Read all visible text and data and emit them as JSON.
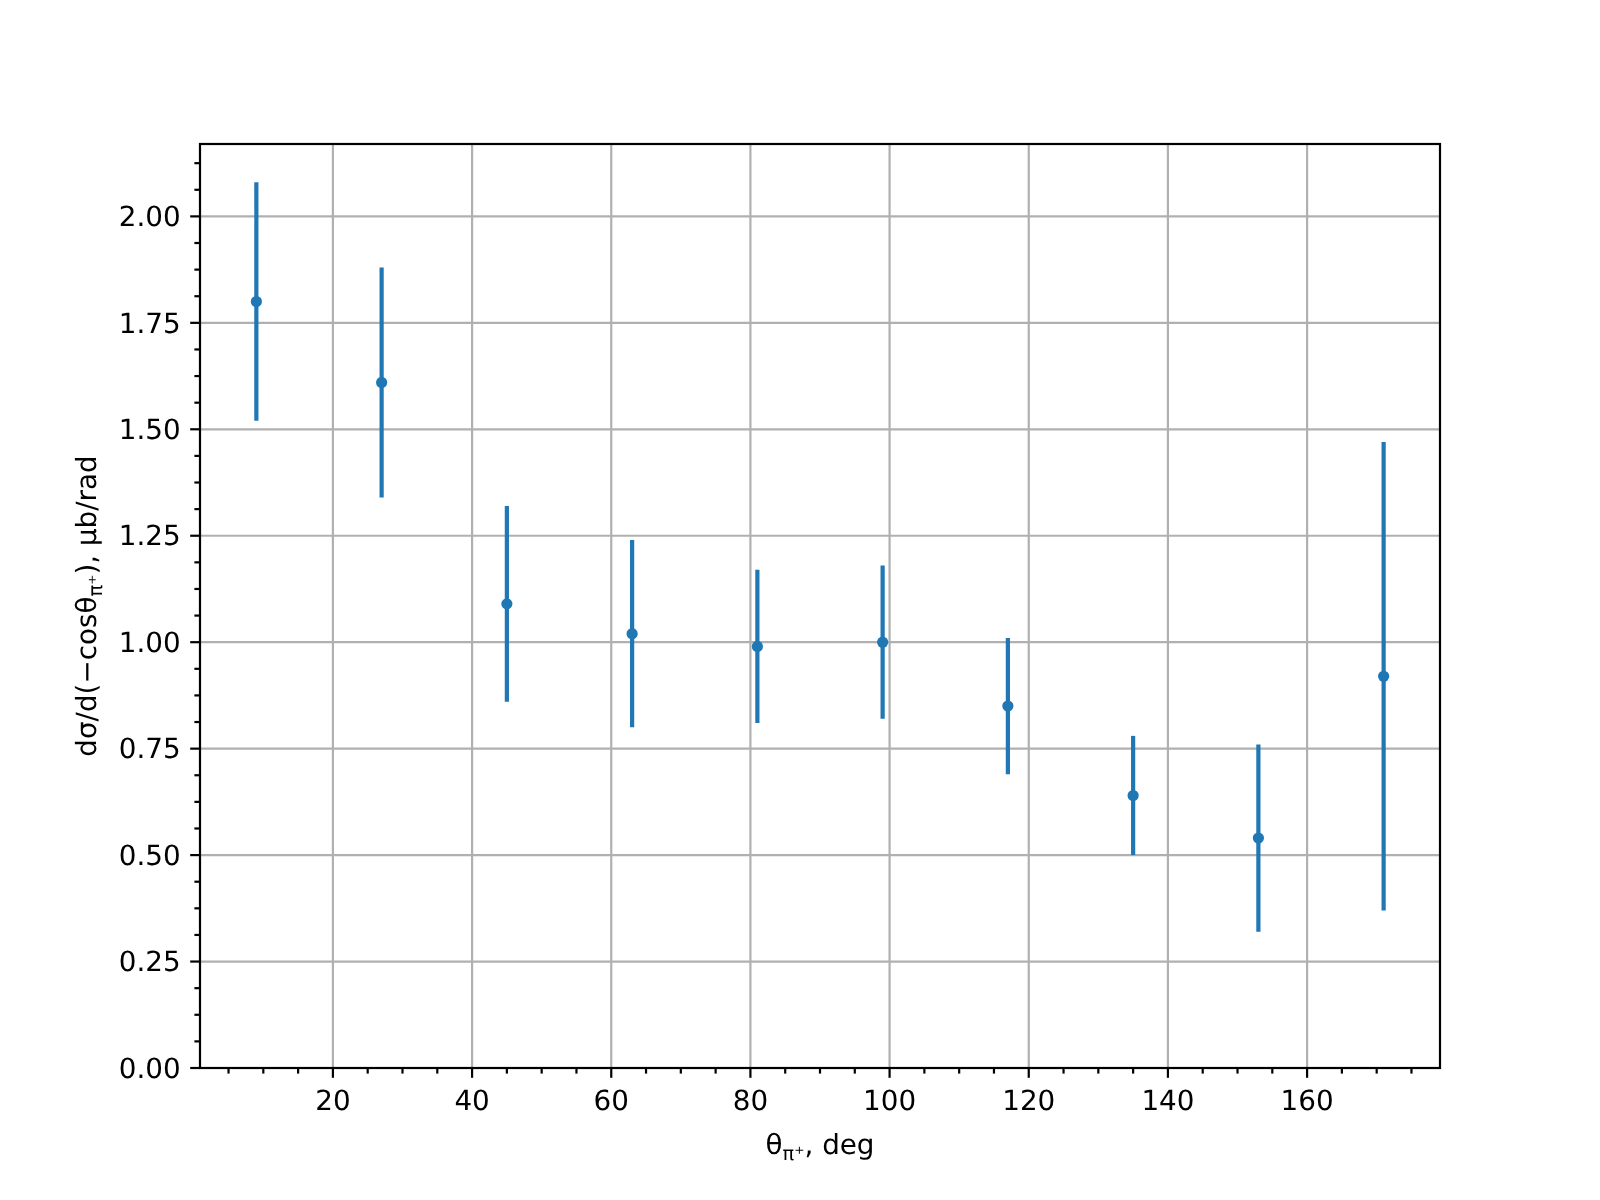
{
  "chart_data": {
    "type": "scatter",
    "xlabel": "θ$_{π⁺}$, deg",
    "ylabel": "dσ/d(−cosθ$_{π⁺}$), μb/rad",
    "x": [
      9,
      27,
      45,
      63,
      81,
      99,
      117,
      135,
      153,
      171
    ],
    "values": [
      1.8,
      1.61,
      1.09,
      1.02,
      0.99,
      1.0,
      0.85,
      0.64,
      0.54,
      0.92
    ],
    "errors": [
      0.28,
      0.27,
      0.23,
      0.22,
      0.18,
      0.18,
      0.16,
      0.14,
      0.22,
      0.55
    ],
    "color": "#1f77b4",
    "marker": "circle",
    "xlim": [
      0.9,
      179.1
    ],
    "ylim": [
      0,
      2.17
    ],
    "xticks": [
      {
        "value": 5,
        "label": null
      },
      {
        "value": 10,
        "label": null
      },
      {
        "value": 15,
        "label": null
      },
      20,
      {
        "value": 25,
        "label": null
      },
      {
        "value": 30,
        "label": null
      },
      {
        "value": 35,
        "label": null
      },
      40,
      {
        "value": 45,
        "label": null
      },
      {
        "value": 50,
        "label": null
      },
      {
        "value": 55,
        "label": null
      },
      60,
      {
        "value": 65,
        "label": null
      },
      {
        "value": 70,
        "label": null
      },
      {
        "value": 75,
        "label": null
      },
      80,
      {
        "value": 85,
        "label": null
      },
      {
        "value": 90,
        "label": null
      },
      {
        "value": 95,
        "label": null
      },
      100,
      {
        "value": 105,
        "label": null
      },
      {
        "value": 110,
        "label": null
      },
      {
        "value": 115,
        "label": null
      },
      120,
      {
        "value": 125,
        "label": null
      },
      {
        "value": 130,
        "label": null
      },
      {
        "value": 135,
        "label": null
      },
      140,
      {
        "value": 145,
        "label": null
      },
      {
        "value": 150,
        "label": null
      },
      {
        "value": 155,
        "label": null
      },
      160,
      {
        "value": 165,
        "label": null
      },
      {
        "value": 170,
        "label": null
      },
      {
        "value": 175,
        "label": null
      }
    ],
    "yticks": [
      {
        "value": 0,
        "label": "0.00"
      },
      {
        "value": 0.0625,
        "label": null
      },
      {
        "value": 0.125,
        "label": null
      },
      {
        "value": 0.1875,
        "label": null
      },
      {
        "value": 0.25,
        "label": "0.25"
      },
      {
        "value": 0.3125,
        "label": null
      },
      {
        "value": 0.375,
        "label": null
      },
      {
        "value": 0.4375,
        "label": null
      },
      {
        "value": 0.5,
        "label": "0.50"
      },
      {
        "value": 0.5625,
        "label": null
      },
      {
        "value": 0.625,
        "label": null
      },
      {
        "value": 0.6875,
        "label": null
      },
      {
        "value": 0.75,
        "label": "0.75"
      },
      {
        "value": 0.8125,
        "label": null
      },
      {
        "value": 0.875,
        "label": null
      },
      {
        "value": 0.9375,
        "label": null
      },
      {
        "value": 1,
        "label": "1.00"
      },
      {
        "value": 1.0625,
        "label": null
      },
      {
        "value": 1.125,
        "label": null
      },
      {
        "value": 1.1875,
        "label": null
      },
      {
        "value": 1.25,
        "label": "1.25"
      },
      {
        "value": 1.3125,
        "label": null
      },
      {
        "value": 1.375,
        "label": null
      },
      {
        "value": 1.4375,
        "label": null
      },
      {
        "value": 1.5,
        "label": "1.50"
      },
      {
        "value": 1.5625,
        "label": null
      },
      {
        "value": 1.625,
        "label": null
      },
      {
        "value": 1.6875,
        "label": null
      },
      {
        "value": 1.75,
        "label": "1.75"
      },
      {
        "value": 1.8125,
        "label": null
      },
      {
        "value": 1.875,
        "label": null
      },
      {
        "value": 1.9375,
        "label": null
      },
      {
        "value": 2,
        "label": "2.00"
      },
      {
        "value": 2.0625,
        "label": null
      },
      {
        "value": 2.125,
        "label": null
      }
    ],
    "grid": true
  }
}
